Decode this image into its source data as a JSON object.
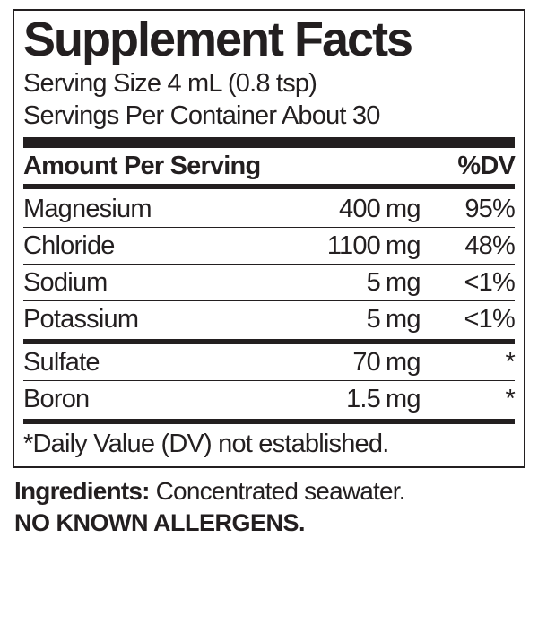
{
  "title": "Supplement Facts",
  "serving_size": "Serving Size 4 mL (0.8 tsp)",
  "servings_per_container": "Servings Per Container About 30",
  "header": {
    "amount_label": "Amount Per Serving",
    "dv_label": "%DV"
  },
  "section1": [
    {
      "name": "Magnesium",
      "amount": "400",
      "unit": "mg",
      "dv": "95%"
    },
    {
      "name": "Chloride",
      "amount": "1100",
      "unit": "mg",
      "dv": "48%"
    },
    {
      "name": "Sodium",
      "amount": "5",
      "unit": "mg",
      "dv": "<1%"
    },
    {
      "name": "Potassium",
      "amount": "5",
      "unit": "mg",
      "dv": "<1%"
    }
  ],
  "section2": [
    {
      "name": "Sulfate",
      "amount": "70",
      "unit": "mg",
      "dv": "*"
    },
    {
      "name": "Boron",
      "amount": "1.5",
      "unit": " mg",
      "dv": "*"
    }
  ],
  "footnote": "*Daily Value (DV) not established.",
  "ingredients_label": "Ingredients:",
  "ingredients_text": " Concentrated seawater.",
  "allergens": "NO KNOWN ALLERGENS."
}
